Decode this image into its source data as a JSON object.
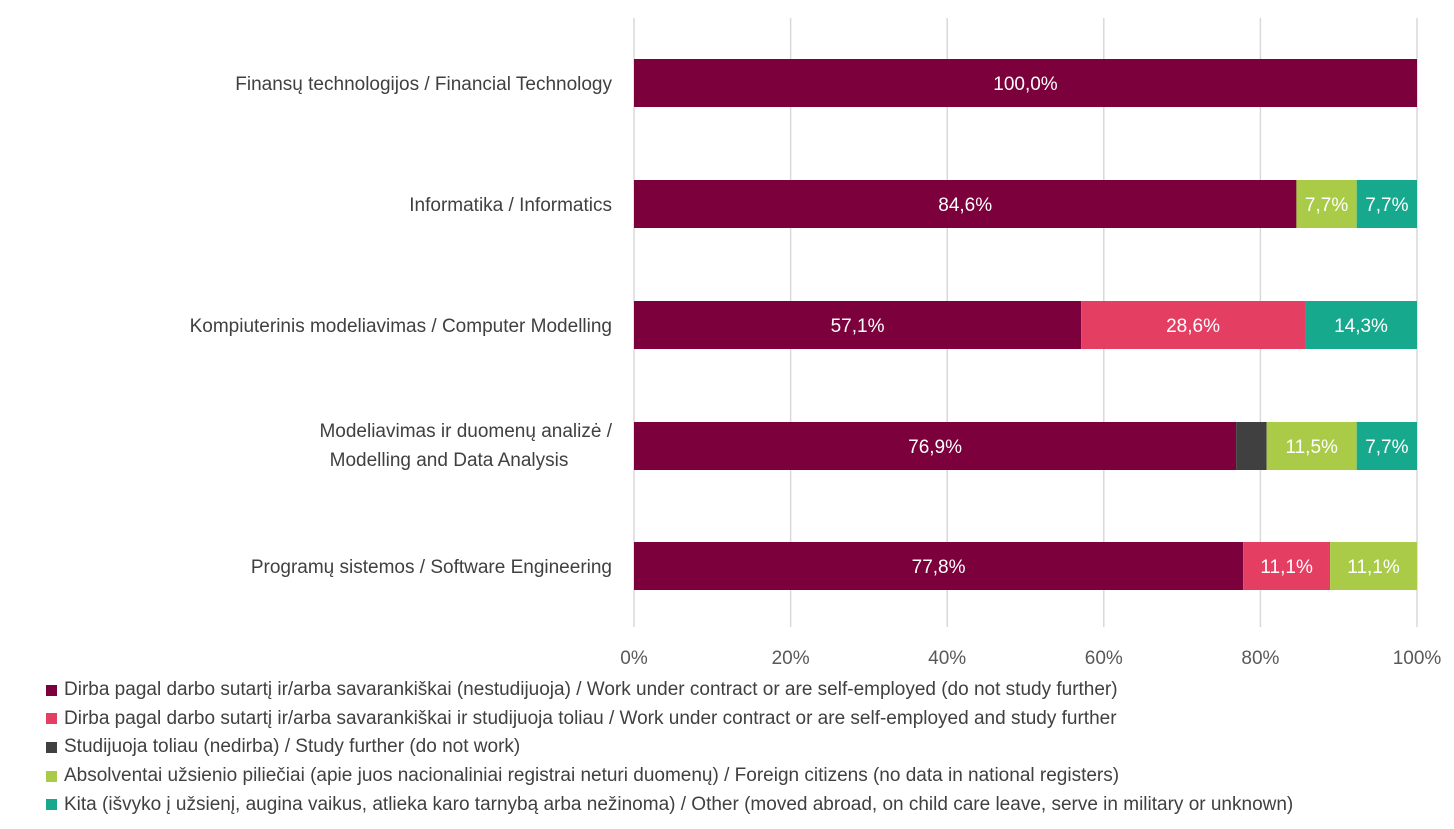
{
  "chart_data": {
    "type": "bar",
    "orientation": "horizontal",
    "stacked": true,
    "categories": [
      [
        "Finansų technologijos / Financial Technology"
      ],
      [
        "Informatika / Informatics"
      ],
      [
        "Kompiuterinis modeliavimas / Computer Modelling"
      ],
      [
        "Modeliavimas ir duomenų analizė /",
        "Modelling and Data Analysis"
      ],
      [
        "Programų sistemos / Software Engineering"
      ]
    ],
    "series": [
      {
        "name": "Dirba pagal darbo sutartį ir/arba savarankiškai (nestudijuoja) / Work under contract or are self-employed (do not study further)",
        "color": "#7B003C",
        "values": [
          100.0,
          84.6,
          57.1,
          76.9,
          77.8
        ],
        "labels": [
          "100,0%",
          "84,6%",
          "57,1%",
          "76,9%",
          "77,8%"
        ]
      },
      {
        "name": "Dirba pagal darbo sutartį ir/arba savarankiškai  ir studijuoja toliau / Work under contract or are self-employed and study further",
        "color": "#E53E63",
        "values": [
          0,
          0,
          28.6,
          0,
          11.1
        ],
        "labels": [
          "",
          "",
          "28,6%",
          "",
          "11,1%"
        ]
      },
      {
        "name": "Studijuoja toliau (nedirba) / Study further (do not work)",
        "color": "#404040",
        "values": [
          0,
          0,
          0,
          3.9,
          0
        ],
        "labels": [
          "",
          "",
          "",
          "",
          ""
        ]
      },
      {
        "name": "Absolventai užsienio piliečiai (apie juos nacionaliniai registrai neturi duomenų) / Foreign citizens (no data in national registers)",
        "color": "#A9CB47",
        "values": [
          0,
          7.7,
          0,
          11.5,
          11.1
        ],
        "labels": [
          "",
          "7,7%",
          "",
          "11,5%",
          "11,1%"
        ]
      },
      {
        "name": "Kita (išvyko į užsienį, augina vaikus, atlieka karo tarnybą arba nežinoma) / Other (moved abroad, on child care leave, serve in military or unknown)",
        "color": "#17A98E",
        "values": [
          0,
          7.7,
          14.3,
          7.7,
          0
        ],
        "labels": [
          "",
          "7,7%",
          "14,3%",
          "7,7%",
          ""
        ]
      }
    ],
    "x_ticks": [
      "0%",
      "20%",
      "40%",
      "60%",
      "80%",
      "100%"
    ],
    "xlim": [
      0,
      100
    ],
    "grid": true,
    "legend_position": "bottom"
  }
}
